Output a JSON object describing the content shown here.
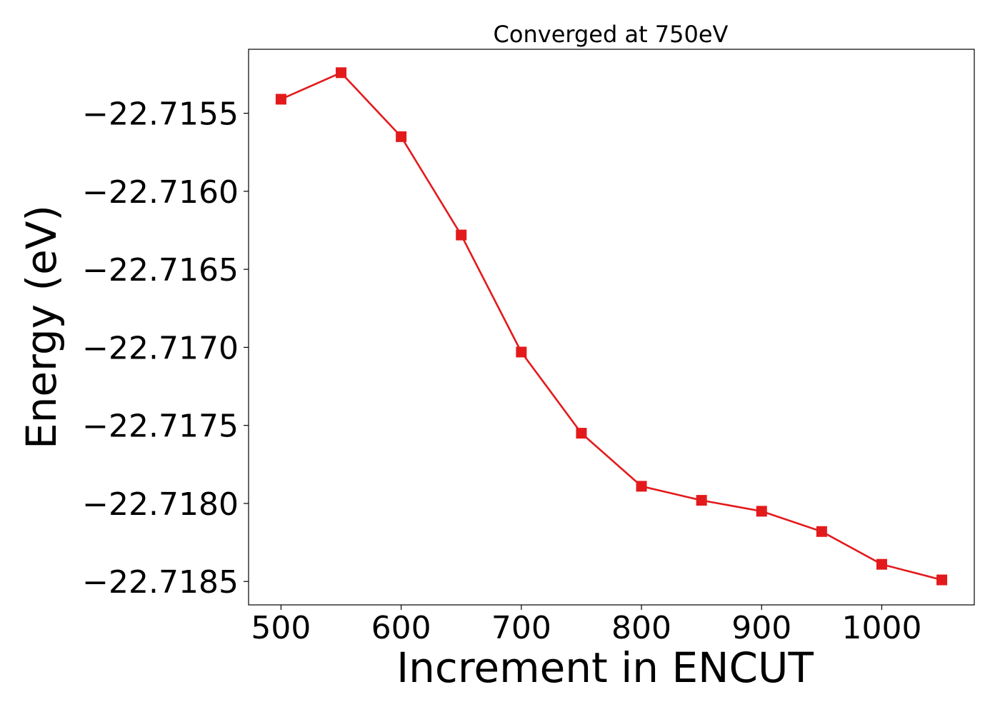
{
  "chart_data": {
    "type": "line",
    "title": "Converged at 750eV",
    "xlabel": "Increment in ENCUT",
    "ylabel": "Energy (eV)",
    "xlim": [
      473,
      1077
    ],
    "ylim": [
      -22.71865,
      -22.71509
    ],
    "xticks": [
      500,
      600,
      700,
      800,
      900,
      1000
    ],
    "xtick_labels": [
      "500",
      "600",
      "700",
      "800",
      "900",
      "1000"
    ],
    "yticks": [
      -22.7155,
      -22.716,
      -22.7165,
      -22.717,
      -22.7175,
      -22.718,
      -22.7185
    ],
    "ytick_labels": [
      "−22.7155",
      "−22.7160",
      "−22.7165",
      "−22.7170",
      "−22.7175",
      "−22.7180",
      "−22.7185"
    ],
    "grid": false,
    "color": "#e31a1c",
    "marker": "square",
    "series": [
      {
        "x": [
          500,
          550,
          600,
          650,
          700,
          750,
          800,
          850,
          900,
          950,
          1000,
          1050
        ],
        "values": [
          -22.71541,
          -22.71524,
          -22.71565,
          -22.71628,
          -22.71703,
          -22.71755,
          -22.71789,
          -22.71798,
          -22.71805,
          -22.71818,
          -22.71839,
          -22.71849
        ]
      }
    ]
  }
}
